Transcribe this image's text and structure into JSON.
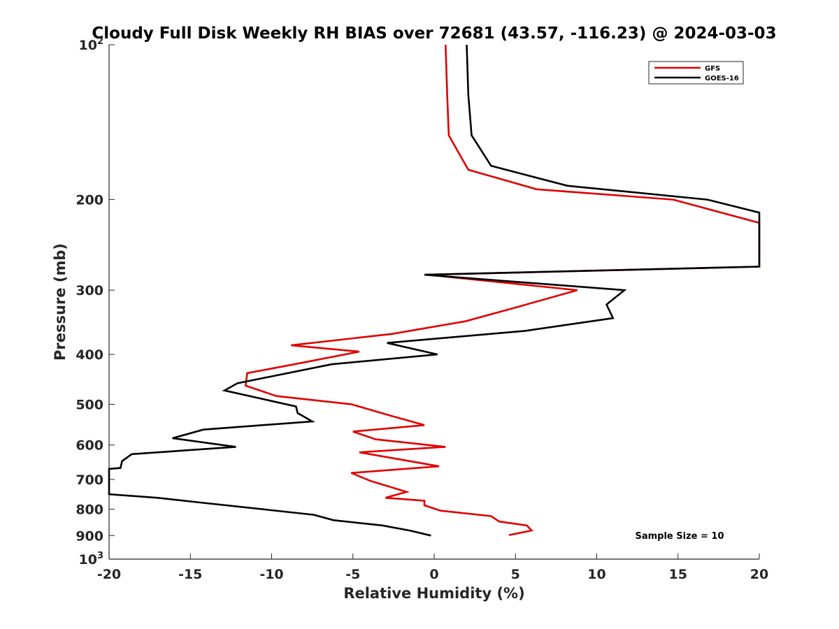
{
  "chart_data": {
    "type": "line",
    "title": "Cloudy Full Disk Weekly RH BIAS over 72681 (43.57, -116.23) @ 2024-03-03",
    "xlabel": "Relative Humidity (%)",
    "ylabel": "Pressure (mb)",
    "xlim": [
      -20,
      20
    ],
    "ylim": [
      100,
      1000
    ],
    "yscale": "log",
    "y_reversed": true,
    "grid": false,
    "legend_position": "top-right",
    "x_ticks": [
      "-20",
      "-15",
      "-10",
      "-5",
      "0",
      "5",
      "10",
      "15",
      "20"
    ],
    "x_tick_values": [
      -20,
      -15,
      -10,
      -5,
      0,
      5,
      10,
      15,
      20
    ],
    "y_ticks": [
      {
        "value": 100,
        "base": "10",
        "exp": "2"
      },
      {
        "value": 200,
        "label": "200"
      },
      {
        "value": 300,
        "label": "300"
      },
      {
        "value": 400,
        "label": "400"
      },
      {
        "value": 500,
        "label": "500"
      },
      {
        "value": 600,
        "label": "600"
      },
      {
        "value": 700,
        "label": "700"
      },
      {
        "value": 800,
        "label": "800"
      },
      {
        "value": 900,
        "label": "900"
      },
      {
        "value": 1000,
        "base": "10",
        "exp": "3"
      }
    ],
    "annotation": "Sample Size = 10",
    "series": [
      {
        "name": "GFS",
        "color": "#e00000",
        "points": [
          [
            0.7,
            100
          ],
          [
            0.8,
            125
          ],
          [
            0.9,
            150
          ],
          [
            2.1,
            175
          ],
          [
            6.3,
            191
          ],
          [
            14.7,
            200
          ],
          [
            20.0,
            222
          ],
          [
            20.0,
            270
          ],
          [
            -0.4,
            280
          ],
          [
            8.8,
            300
          ],
          [
            4.9,
            325
          ],
          [
            1.9,
            345
          ],
          [
            -2.6,
            365
          ],
          [
            -8.8,
            384
          ],
          [
            -4.6,
            395
          ],
          [
            -8.6,
            418
          ],
          [
            -11.5,
            435
          ],
          [
            -11.6,
            460
          ],
          [
            -9.7,
            482
          ],
          [
            -5.1,
            500
          ],
          [
            -2.8,
            525
          ],
          [
            -0.6,
            549
          ],
          [
            -5.0,
            565
          ],
          [
            -3.6,
            585
          ],
          [
            0.7,
            605
          ],
          [
            -4.6,
            620
          ],
          [
            0.3,
            660
          ],
          [
            -5.1,
            680
          ],
          [
            -3.9,
            705
          ],
          [
            -1.7,
            740
          ],
          [
            -3.0,
            760
          ],
          [
            -0.6,
            770
          ],
          [
            -0.6,
            786
          ],
          [
            0.4,
            805
          ],
          [
            3.5,
            825
          ],
          [
            4.0,
            845
          ],
          [
            5.7,
            860
          ],
          [
            6.0,
            880
          ],
          [
            4.6,
            898
          ]
        ]
      },
      {
        "name": "GOES-16",
        "color": "#000000",
        "points": [
          [
            2.0,
            100
          ],
          [
            2.1,
            125
          ],
          [
            2.3,
            150
          ],
          [
            3.5,
            172
          ],
          [
            8.2,
            188
          ],
          [
            16.8,
            200
          ],
          [
            20.0,
            212
          ],
          [
            20.0,
            270
          ],
          [
            -0.6,
            280
          ],
          [
            11.7,
            300
          ],
          [
            10.6,
            320
          ],
          [
            11.0,
            340
          ],
          [
            5.6,
            360
          ],
          [
            -2.9,
            380
          ],
          [
            0.2,
            400
          ],
          [
            -6.3,
            418
          ],
          [
            -9.8,
            440
          ],
          [
            -12.1,
            455
          ],
          [
            -12.9,
            470
          ],
          [
            -8.5,
            505
          ],
          [
            -8.4,
            520
          ],
          [
            -7.5,
            540
          ],
          [
            -14.2,
            560
          ],
          [
            -16.1,
            582
          ],
          [
            -12.2,
            605
          ],
          [
            -18.6,
            625
          ],
          [
            -19.2,
            645
          ],
          [
            -19.3,
            665
          ],
          [
            -20.0,
            668
          ],
          [
            -20.0,
            748
          ],
          [
            -17.0,
            760
          ],
          [
            -14.6,
            775
          ],
          [
            -7.4,
            820
          ],
          [
            -6.2,
            840
          ],
          [
            -3.2,
            860
          ],
          [
            -1.5,
            880
          ],
          [
            -0.2,
            900
          ]
        ]
      }
    ]
  }
}
